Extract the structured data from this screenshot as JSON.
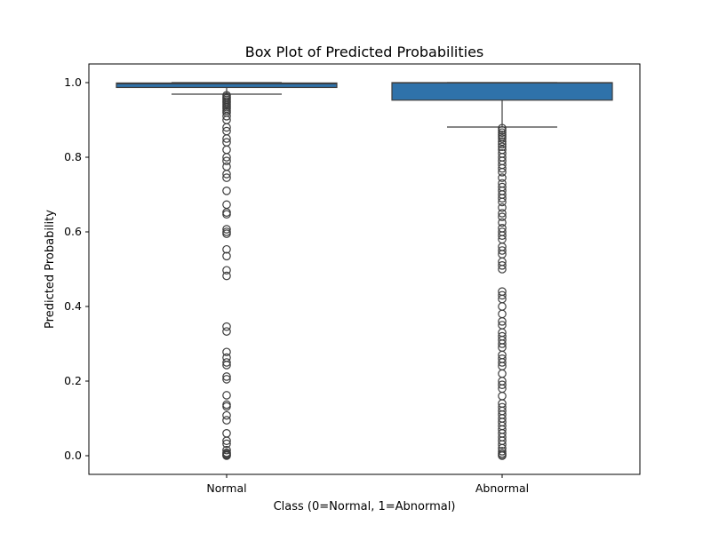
{
  "chart_data": {
    "type": "box",
    "title": "Box Plot of Predicted Probabilities",
    "xlabel": "Class (0=Normal, 1=Abnormal)",
    "ylabel": "Predicted Probability",
    "ylim": [
      -0.05,
      1.05
    ],
    "yticks": [
      0.0,
      0.2,
      0.4,
      0.6,
      0.8,
      1.0
    ],
    "ytick_labels": [
      "0.0",
      "0.2",
      "0.4",
      "0.6",
      "0.8",
      "1.0"
    ],
    "categories": [
      "Normal",
      "Abnormal"
    ],
    "grid": false,
    "colors": {
      "box_fill": "#2f72aa",
      "line": "#3d3d3d",
      "axes": "#000000"
    },
    "boxes": [
      {
        "category": "Normal",
        "whisker_low": 0.969,
        "q1": 0.987,
        "median": 0.997,
        "q3": 0.999,
        "whisker_high": 1.0,
        "outliers": [
          0.966,
          0.962,
          0.958,
          0.954,
          0.95,
          0.946,
          0.942,
          0.938,
          0.934,
          0.93,
          0.925,
          0.92,
          0.91,
          0.9,
          0.88,
          0.87,
          0.85,
          0.84,
          0.82,
          0.8,
          0.79,
          0.775,
          0.755,
          0.745,
          0.71,
          0.673,
          0.652,
          0.647,
          0.607,
          0.6,
          0.595,
          0.553,
          0.535,
          0.497,
          0.482,
          0.346,
          0.333,
          0.278,
          0.263,
          0.25,
          0.243,
          0.212,
          0.205,
          0.162,
          0.137,
          0.132,
          0.108,
          0.095,
          0.06,
          0.04,
          0.032,
          0.015,
          0.008,
          0.005,
          0.003,
          0.001,
          0.0
        ]
      },
      {
        "category": "Abnormal",
        "whisker_low": 0.881,
        "q1": 0.953,
        "median": 0.999,
        "q3": 1.0,
        "whisker_high": 1.0,
        "outliers": [
          0.878,
          0.872,
          0.866,
          0.86,
          0.855,
          0.85,
          0.842,
          0.835,
          0.828,
          0.82,
          0.81,
          0.8,
          0.79,
          0.78,
          0.77,
          0.76,
          0.745,
          0.73,
          0.72,
          0.71,
          0.7,
          0.69,
          0.68,
          0.665,
          0.65,
          0.64,
          0.625,
          0.61,
          0.6,
          0.59,
          0.58,
          0.56,
          0.55,
          0.54,
          0.52,
          0.51,
          0.5,
          0.44,
          0.43,
          0.42,
          0.4,
          0.38,
          0.36,
          0.35,
          0.33,
          0.32,
          0.31,
          0.3,
          0.29,
          0.27,
          0.26,
          0.25,
          0.24,
          0.22,
          0.2,
          0.19,
          0.18,
          0.16,
          0.14,
          0.13,
          0.12,
          0.11,
          0.1,
          0.09,
          0.08,
          0.07,
          0.06,
          0.05,
          0.04,
          0.03,
          0.02,
          0.012,
          0.006,
          0.002,
          0.0
        ]
      }
    ]
  }
}
